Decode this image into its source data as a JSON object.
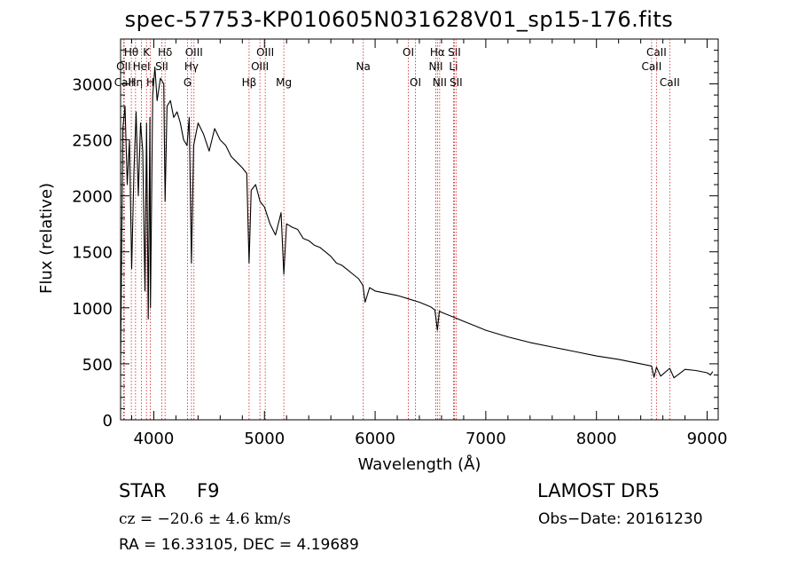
{
  "chart_data": {
    "type": "line",
    "title": "spec-57753-KP010605N031628V01_sp15-176.fits",
    "xlabel": "Wavelength (Å)",
    "ylabel": "Flux (relative)",
    "xlim": [
      3700,
      9100
    ],
    "ylim": [
      0,
      3400
    ],
    "x_ticks": [
      4000,
      5000,
      6000,
      7000,
      8000,
      9000
    ],
    "y_ticks": [
      0,
      500,
      1000,
      1500,
      2000,
      2500,
      3000
    ],
    "grid": false,
    "series": [
      {
        "x": [
          3700,
          3720,
          3740,
          3760,
          3780,
          3800,
          3820,
          3840,
          3860,
          3880,
          3900,
          3920,
          3935,
          3950,
          3965,
          3970,
          3990,
          4010,
          4030,
          4060,
          4090,
          4102,
          4120,
          4150,
          4180,
          4210,
          4240,
          4270,
          4300,
          4320,
          4340,
          4360,
          4400,
          4450,
          4500,
          4550,
          4600,
          4650,
          4700,
          4750,
          4800,
          4840,
          4861,
          4880,
          4920,
          4960,
          5000,
          5050,
          5100,
          5150,
          5175,
          5200,
          5250,
          5300,
          5350,
          5400,
          5450,
          5500,
          5550,
          5600,
          5650,
          5700,
          5750,
          5800,
          5850,
          5890,
          5910,
          5950,
          6000,
          6100,
          6200,
          6300,
          6400,
          6500,
          6540,
          6563,
          6580,
          6600,
          6700,
          6800,
          6900,
          7000,
          7200,
          7400,
          7600,
          7800,
          8000,
          8200,
          8400,
          8498,
          8520,
          8542,
          8580,
          8662,
          8700,
          8800,
          8900,
          9000,
          9030,
          9050
        ],
        "y": [
          500,
          2600,
          2800,
          2100,
          2500,
          1350,
          2200,
          2750,
          2000,
          2650,
          2400,
          1150,
          2650,
          900,
          2700,
          1000,
          2900,
          3150,
          2850,
          3050,
          3000,
          1950,
          2800,
          2850,
          2700,
          2750,
          2650,
          2500,
          2450,
          2700,
          1400,
          2450,
          2650,
          2550,
          2400,
          2600,
          2500,
          2450,
          2350,
          2300,
          2250,
          2200,
          1400,
          2050,
          2100,
          1950,
          1900,
          1750,
          1650,
          1850,
          1300,
          1750,
          1720,
          1700,
          1620,
          1600,
          1560,
          1540,
          1500,
          1460,
          1400,
          1380,
          1340,
          1300,
          1260,
          1200,
          1050,
          1180,
          1150,
          1130,
          1110,
          1080,
          1050,
          1010,
          980,
          800,
          970,
          960,
          920,
          880,
          840,
          800,
          740,
          690,
          650,
          610,
          570,
          540,
          500,
          480,
          380,
          470,
          390,
          460,
          375,
          450,
          440,
          420,
          400,
          430
        ]
      }
    ],
    "lines": [
      {
        "label": "Hθ",
        "x": 3797,
        "row": 1
      },
      {
        "label": "OII",
        "x": 3727,
        "row": 2
      },
      {
        "label": "CaII",
        "x": 3733,
        "row": 3
      },
      {
        "label": "Hη",
        "x": 3835,
        "row": 3
      },
      {
        "label": "K",
        "x": 3934,
        "row": 1
      },
      {
        "label": "HeI",
        "x": 3889,
        "row": 2
      },
      {
        "label": "H",
        "x": 3969,
        "row": 3
      },
      {
        "label": "Hδ",
        "x": 4102,
        "row": 1
      },
      {
        "label": "SII",
        "x": 4072,
        "row": 2
      },
      {
        "label": "OIII",
        "x": 4363,
        "row": 1
      },
      {
        "label": "Hγ",
        "x": 4340,
        "row": 2
      },
      {
        "label": "G",
        "x": 4305,
        "row": 3
      },
      {
        "label": "OIII",
        "x": 5007,
        "row": 1
      },
      {
        "label": "OIII",
        "x": 4959,
        "row": 2
      },
      {
        "label": "Hβ",
        "x": 4861,
        "row": 3
      },
      {
        "label": "Mg",
        "x": 5175,
        "row": 3
      },
      {
        "label": "Na",
        "x": 5893,
        "row": 2
      },
      {
        "label": "OI",
        "x": 6300,
        "row": 1
      },
      {
        "label": "OI",
        "x": 6364,
        "row": 3
      },
      {
        "label": "Hα",
        "x": 6563,
        "row": 1
      },
      {
        "label": "NII",
        "x": 6548,
        "row": 2
      },
      {
        "label": "NII",
        "x": 6583,
        "row": 3
      },
      {
        "label": "SII",
        "x": 6716,
        "row": 1
      },
      {
        "label": "Li",
        "x": 6708,
        "row": 2
      },
      {
        "label": "SII",
        "x": 6731,
        "row": 3
      },
      {
        "label": "CaII",
        "x": 8542,
        "row": 1
      },
      {
        "label": "CaII",
        "x": 8498,
        "row": 2
      },
      {
        "label": "CaII",
        "x": 8662,
        "row": 3
      }
    ]
  },
  "footer": {
    "class_label": "STAR",
    "subclass": "F9",
    "survey": "LAMOST DR5",
    "cz": "cz = −20.6 ± 4.6 km/s",
    "obs_date": "Obs−Date: 20161230",
    "radec": "RA =  16.33105, DEC =   4.19689"
  },
  "colors": {
    "spectrum": "#000000",
    "line_markers": "#cc2222",
    "axes": "#000000"
  }
}
